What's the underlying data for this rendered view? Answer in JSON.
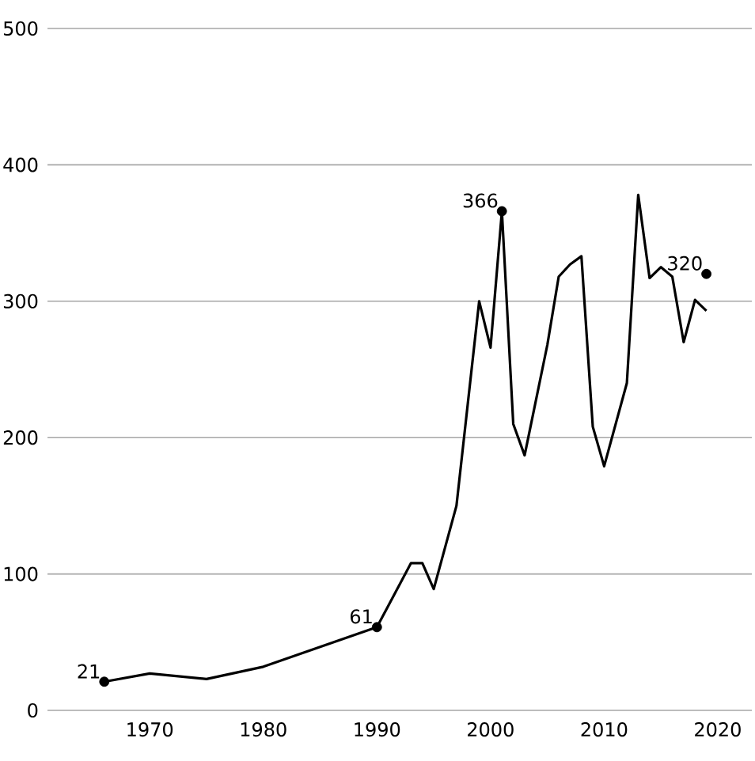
{
  "chart_data": {
    "type": "line",
    "xlim": [
      1961,
      2023
    ],
    "ylim": [
      0,
      500
    ],
    "xticks": [
      1970,
      1980,
      1990,
      2000,
      2010,
      2020
    ],
    "yticks": [
      0,
      100,
      200,
      300,
      400,
      500
    ],
    "grid": "y",
    "series": [
      {
        "type": "line",
        "color": "#000000",
        "x": [
          1966,
          1970,
          1975,
          1980,
          1990,
          1993,
          1994,
          1995,
          1997,
          1999,
          2000,
          2001,
          2002,
          2003,
          2005,
          2006,
          2007,
          2008,
          2009,
          2010,
          2012,
          2013,
          2014,
          2015,
          2016,
          2017,
          2018,
          2019
        ],
        "values": [
          21,
          27,
          23,
          32,
          61,
          108,
          108,
          89,
          150,
          300,
          266,
          366,
          210,
          187,
          268,
          318,
          327,
          333,
          208,
          179,
          240,
          378,
          317,
          325,
          318,
          270,
          301,
          293
        ]
      },
      {
        "type": "scatter",
        "color": "#000000",
        "marker": "circle",
        "x": [
          1966,
          1990,
          2001,
          2019
        ],
        "values": [
          21,
          61,
          366,
          320
        ],
        "value_labels": [
          "21",
          "61",
          "366",
          "320"
        ]
      }
    ]
  }
}
